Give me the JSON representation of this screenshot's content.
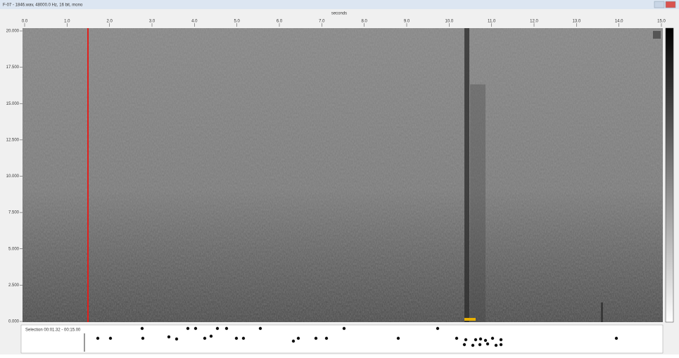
{
  "window": {
    "title": "F-07 - 1846.wav, 48000.0 Hz, 16 bit, mono"
  },
  "spectrogram": {
    "x_axis_label": "seconds",
    "x_ticks": [
      "0.0",
      "1.0",
      "2.0",
      "3.0",
      "4.0",
      "5.0",
      "6.0",
      "7.0",
      "8.0",
      "9.0",
      "10.0",
      "11.0",
      "12.0",
      "13.0",
      "14.0",
      "15.0"
    ],
    "y_ticks": [
      "20.000",
      "17.500",
      "15.000",
      "12.500",
      "10.000",
      "7.500",
      "5.000",
      "2.500",
      "0.000"
    ]
  },
  "annotation_track": {
    "label": "Selection 00:01.32 - 00:15.00"
  }
}
